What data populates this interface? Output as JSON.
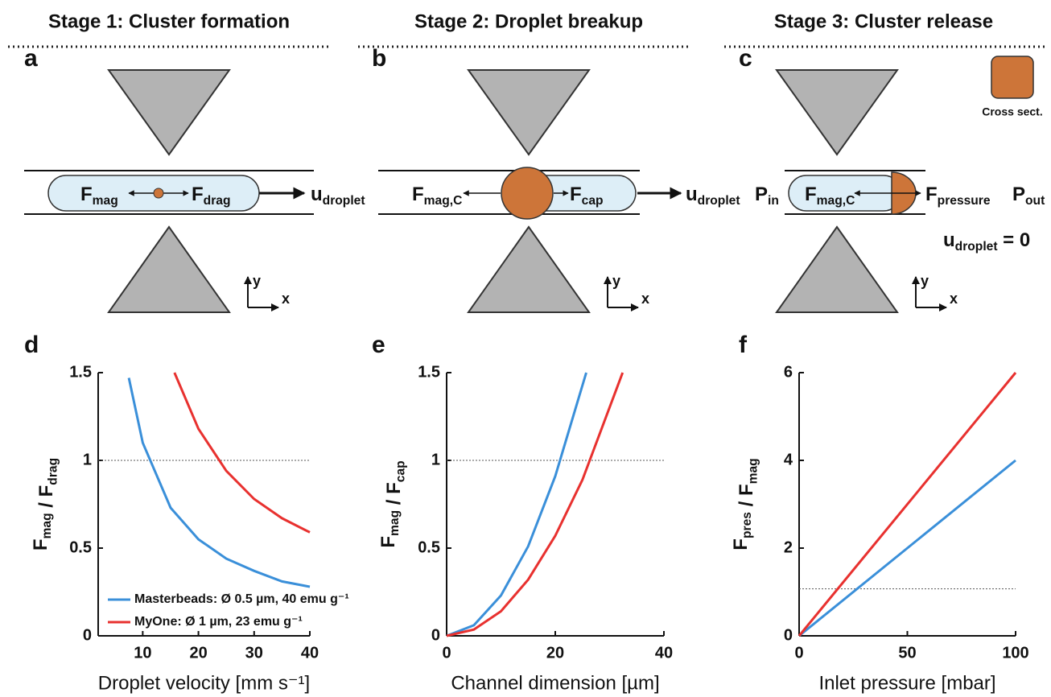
{
  "stages": [
    {
      "title": "Stage 1: Cluster formation",
      "letter": "a",
      "labels": [
        {
          "text": "F",
          "sub": "mag"
        },
        {
          "text": "F",
          "sub": "drag"
        },
        {
          "text": "u",
          "sub": "droplet"
        }
      ]
    },
    {
      "title": "Stage 2: Droplet breakup",
      "letter": "b",
      "labels": [
        {
          "text": "F",
          "sub": "mag,C"
        },
        {
          "text": "F",
          "sub": "cap"
        },
        {
          "text": "u",
          "sub": "droplet"
        }
      ]
    },
    {
      "title": "Stage 3: Cluster release",
      "letter": "c",
      "labels": [
        {
          "text": "P",
          "sub": "in"
        },
        {
          "text": "F",
          "sub": "mag,C"
        },
        {
          "text": "F",
          "sub": "pressure"
        },
        {
          "text": "P",
          "sub": "out"
        },
        {
          "text": "u",
          "sub": "droplet",
          "after": " = 0"
        }
      ],
      "inset": "Cross sect."
    }
  ],
  "axes_icon": {
    "x": "x",
    "y": "y"
  },
  "chart_data": [
    {
      "type": "line",
      "label": "d",
      "xlabel": "Droplet velocity [mm s⁻¹]",
      "ylabel": [
        {
          "text": "F",
          "sub": "mag"
        },
        {
          "text": " / F",
          "sub": "drag"
        }
      ],
      "xlim": [
        2,
        40
      ],
      "xticks": [
        10,
        20,
        30,
        40
      ],
      "ylim": [
        0,
        1.5
      ],
      "yticks": [
        0,
        0.5,
        1,
        1.5
      ],
      "hline": 1,
      "series": [
        {
          "name": "Masterbeads: Ø 0.5 µm, 40 emu g⁻¹",
          "color": "#3a8fd9",
          "x": [
            7.5,
            10,
            15,
            20,
            25,
            30,
            35,
            40
          ],
          "values": [
            1.47,
            1.1,
            0.73,
            0.55,
            0.44,
            0.37,
            0.31,
            0.28
          ]
        },
        {
          "name": "MyOne: Ø 1 µm, 23 emu g⁻¹",
          "color": "#e8312f",
          "x": [
            15.7,
            20,
            25,
            30,
            35,
            40
          ],
          "values": [
            1.5,
            1.18,
            0.94,
            0.78,
            0.67,
            0.59
          ]
        }
      ]
    },
    {
      "type": "line",
      "label": "e",
      "xlabel": "Channel dimension [µm]",
      "ylabel": [
        {
          "text": "F",
          "sub": "mag"
        },
        {
          "text": " / F",
          "sub": "cap"
        }
      ],
      "xlim": [
        0,
        40
      ],
      "xticks": [
        0,
        20,
        40
      ],
      "ylim": [
        0,
        1.5
      ],
      "yticks": [
        0,
        0.5,
        1,
        1.5
      ],
      "hline": 1,
      "series": [
        {
          "color": "#3a8fd9",
          "x": [
            0,
            5,
            10,
            15,
            20,
            25.7
          ],
          "values": [
            0,
            0.06,
            0.23,
            0.51,
            0.91,
            1.5
          ]
        },
        {
          "color": "#e8312f",
          "x": [
            0,
            5,
            10,
            15,
            20,
            25,
            32.4
          ],
          "values": [
            0,
            0.036,
            0.14,
            0.32,
            0.57,
            0.89,
            1.5
          ]
        }
      ]
    },
    {
      "type": "line",
      "label": "f",
      "xlabel": "Inlet pressure [mbar]",
      "ylabel": [
        {
          "text": "F",
          "sub": "pres"
        },
        {
          "text": " / F",
          "sub": "mag"
        }
      ],
      "xlim": [
        0,
        100
      ],
      "xticks": [
        0,
        50,
        100
      ],
      "ylim": [
        0,
        6
      ],
      "yticks": [
        0,
        2,
        4,
        6
      ],
      "hline": 1.07,
      "series": [
        {
          "color": "#3a8fd9",
          "x": [
            0,
            100
          ],
          "values": [
            0,
            4
          ]
        },
        {
          "color": "#e8312f",
          "x": [
            0,
            100
          ],
          "values": [
            0,
            6
          ]
        }
      ]
    }
  ]
}
